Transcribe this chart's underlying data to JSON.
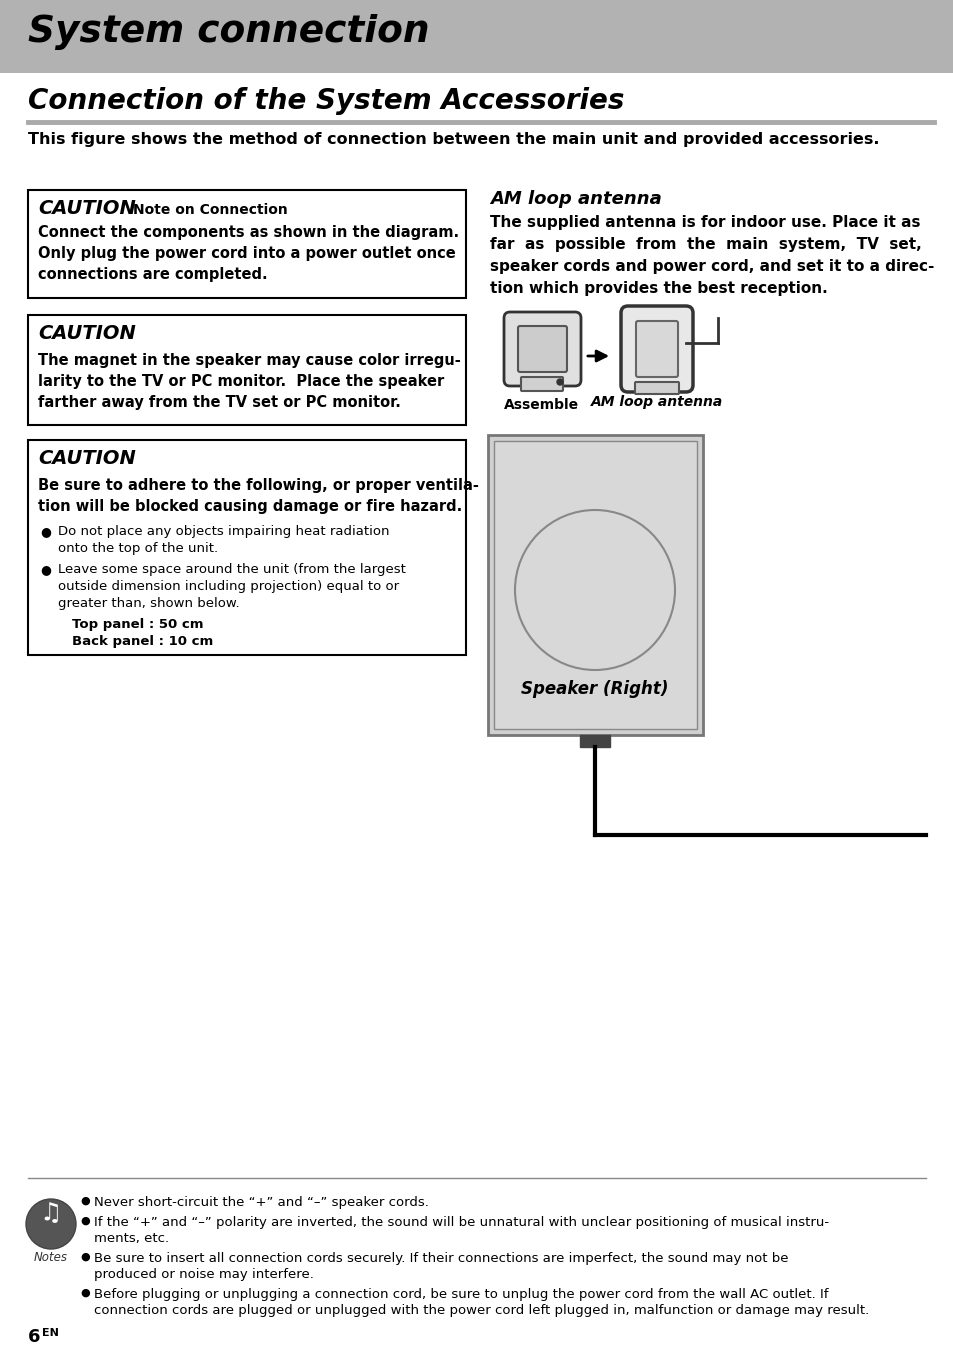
{
  "page_bg": "#ffffff",
  "header_bg": "#b2b2b2",
  "header_text": "System connection",
  "subheader_text": "Connection of the System Accessories",
  "intro_text": "This figure shows the method of connection between the main unit and provided accessories.",
  "c1_title": "CAUTION",
  "c1_sub": "Note on Connection",
  "c1_lines": [
    "Connect the components as shown in the diagram.",
    "Only plug the power cord into a power outlet once",
    "connections are completed."
  ],
  "c2_title": "CAUTION",
  "c2_lines": [
    "The magnet in the speaker may cause color irregu-",
    "larity to the TV or PC monitor.  Place the speaker",
    "farther away from the TV set or PC monitor."
  ],
  "c3_title": "CAUTION",
  "c3_bold": [
    "Be sure to adhere to the following, or proper ventila-",
    "tion will be blocked causing damage or fire hazard."
  ],
  "c3_b1": [
    "Do not place any objects impairing heat radiation",
    "onto the top of the unit."
  ],
  "c3_b2": [
    "Leave some space around the unit (from the largest",
    "outside dimension including projection) equal to or",
    "greater than, shown below."
  ],
  "c3_indent": [
    "Top panel : 50 cm",
    "Back panel : 10 cm"
  ],
  "am_title": "AM loop antenna",
  "am_lines": [
    "The supplied antenna is for indoor use. Place it as",
    "far  as  possible  from  the  main  system,  TV  set,",
    "speaker cords and power cord, and set it to a direc-",
    "tion which provides the best reception."
  ],
  "assemble_label": "Assemble",
  "am_loop_label": "AM loop antenna",
  "speaker_label": "Speaker (Right)",
  "note1": "Never short-circuit the “+” and “–” speaker cords.",
  "note2": [
    "If the “+” and “–” polarity are inverted, the sound will be unnatural with unclear positioning of musical instru-",
    "ments, etc."
  ],
  "note3": [
    "Be sure to insert all connection cords securely. If their connections are imperfect, the sound may not be",
    "produced or noise may interfere."
  ],
  "note4": [
    "Before plugging or unplugging a connection cord, be sure to unplug the power cord from the wall AC outlet. If",
    "connection cords are plugged or unplugged with the power cord left plugged in, malfunction or damage may result."
  ],
  "page_num": "6",
  "page_sup": "EN"
}
